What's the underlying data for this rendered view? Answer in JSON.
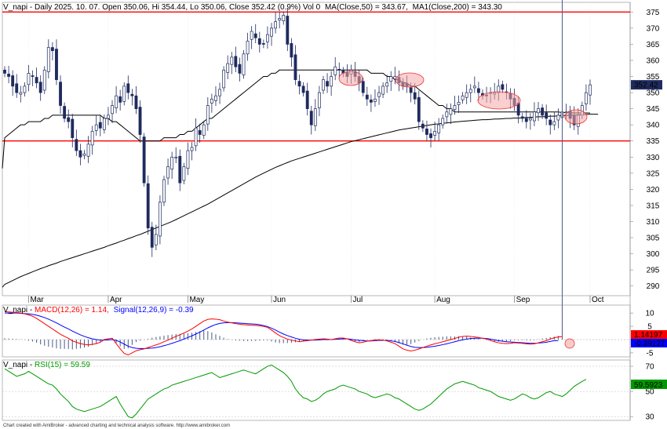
{
  "header": {
    "symbol": "V_napi",
    "price_title": "V_napi - Daily 2025. 10. 07. Open 350.06, Hi 354.44, Lo 350.06, Close 352.42 (0.9%) Vol 0",
    "ma50_label": "MA(Close,50) = 343.67,",
    "ma200_label": "MA1(Close,200) = 343.30",
    "macd_prefix": "V_napi - ",
    "macd_label": "MACD(12,26) = 1.14,",
    "signal_label": "Signal(12,26,9) = -0.39",
    "rsi_prefix": "V_napi - ",
    "rsi_label": "RSI(15) = 59.59",
    "footer": "Chart created with AmiBroker - advanced charting and technical analysis software. http://www.amibroker.com"
  },
  "colors": {
    "bull": "#ffffff",
    "bear": "#1f2b5e",
    "wick": "#1f2b5e",
    "ma50": "#000000",
    "ma200": "#000000",
    "hline": "#ff0000",
    "macd": "#ff0000",
    "signal": "#0000ff",
    "hist": "#4a5a88",
    "rsi": "#009900",
    "last_price_bg": "#1f2b5e",
    "macd_tag_bg": "#ff0000",
    "signal_tag_bg": "#0000ff",
    "rsi_tag_bg": "#009900"
  },
  "chart_data": [
    {
      "type": "candlestick",
      "title": "V_napi - Daily",
      "ylim": [
        287,
        378
      ],
      "yticks": [
        290,
        295,
        300,
        305,
        310,
        315,
        320,
        325,
        330,
        335,
        340,
        345,
        350,
        355,
        360,
        365,
        370,
        375
      ],
      "months": [
        {
          "label": "Mar",
          "index": 6
        },
        {
          "label": "Apr",
          "index": 26
        },
        {
          "label": "May",
          "index": 46
        },
        {
          "label": "Jun",
          "index": 67
        },
        {
          "label": "Jul",
          "index": 87
        },
        {
          "label": "Aug",
          "index": 108
        },
        {
          "label": "Sep",
          "index": 128
        },
        {
          "label": "Oct",
          "index": 147
        }
      ],
      "horizontal_lines": [
        375.0,
        335.0
      ],
      "last_price": "352.42",
      "closes": [
        356,
        355,
        352,
        350,
        350,
        352,
        356,
        355,
        353,
        350,
        357,
        364,
        363,
        354,
        346,
        342,
        341,
        336,
        332,
        330,
        331,
        334,
        338,
        340,
        339,
        342,
        343,
        346,
        349,
        347,
        352,
        350,
        349,
        345,
        337,
        322,
        308,
        302,
        306,
        316,
        323,
        327,
        330,
        330,
        322,
        327,
        332,
        333,
        339,
        337,
        340,
        346,
        348,
        349,
        351,
        357,
        359,
        361,
        358,
        356,
        362,
        366,
        369,
        367,
        365,
        365,
        368,
        370,
        372,
        373,
        374,
        365,
        361,
        354,
        352,
        350,
        345,
        340,
        345,
        350,
        354,
        352,
        355,
        358,
        357,
        356,
        355,
        357,
        355,
        353,
        350,
        348,
        347,
        348,
        350,
        352,
        353,
        355,
        355,
        353,
        352,
        352,
        350,
        348,
        341,
        339,
        337,
        336,
        338,
        340,
        342,
        344,
        345,
        346,
        347,
        349,
        350,
        351,
        352,
        350,
        349,
        349,
        350,
        350,
        352,
        351,
        350,
        348,
        346,
        343,
        342,
        341,
        342,
        344,
        345,
        343,
        342,
        340,
        341,
        343,
        344,
        344,
        342,
        340,
        343,
        346,
        350,
        352.42
      ],
      "series": [
        {
          "name": "MA(Close,50)",
          "values": [
            336,
            337,
            338,
            339,
            340,
            340,
            341,
            341,
            341,
            341,
            342,
            342,
            343,
            343,
            343,
            343,
            343,
            343,
            343,
            343,
            343,
            343,
            343,
            343,
            343,
            342,
            342,
            341,
            341,
            340,
            339,
            338,
            337,
            336,
            335,
            335,
            335,
            335,
            335,
            335,
            336,
            336,
            336,
            336,
            337,
            337,
            338,
            338,
            339,
            340,
            341,
            342,
            342,
            343,
            344,
            345,
            346,
            347,
            348,
            349,
            350,
            351,
            352,
            353,
            354,
            355,
            355,
            356,
            356,
            357,
            357,
            357,
            357,
            357,
            357,
            357,
            357,
            357,
            357,
            357,
            357,
            357,
            357,
            357,
            357,
            357,
            357,
            357,
            357,
            357,
            357,
            357,
            356,
            356,
            356,
            356,
            355,
            355,
            354,
            354,
            353,
            353,
            352,
            352,
            351,
            350,
            349,
            348,
            347,
            346,
            346,
            345,
            345,
            344,
            344,
            344,
            344,
            344,
            344,
            344,
            344,
            344,
            344,
            344,
            344,
            344,
            344,
            344,
            344,
            344,
            344,
            344,
            344,
            344,
            344,
            344,
            344,
            344,
            344,
            344,
            343.8,
            343.8,
            343.7,
            343.7,
            343.7,
            343.7,
            343.7,
            343.67
          ]
        },
        {
          "name": "MA1(Close,200)",
          "values": [
            290.5,
            291.1,
            291.7,
            292.3,
            292.9,
            293.4,
            293.9,
            294.4,
            294.9,
            295.4,
            295.8,
            296.3,
            296.7,
            297.1,
            297.6,
            298.0,
            298.4,
            298.8,
            299.2,
            299.6,
            300.0,
            300.4,
            300.8,
            301.2,
            301.6,
            302.0,
            302.5,
            302.9,
            303.3,
            303.8,
            304.2,
            304.7,
            305.1,
            305.6,
            306.0,
            306.5,
            307.0,
            307.5,
            308.0,
            308.5,
            309.0,
            309.5,
            310.0,
            310.6,
            311.2,
            311.8,
            312.4,
            313.0,
            313.6,
            314.2,
            314.8,
            315.4,
            316.1,
            316.8,
            317.5,
            318.2,
            318.9,
            319.6,
            320.3,
            321.0,
            321.7,
            322.4,
            323.1,
            323.8,
            324.4,
            325.0,
            325.6,
            326.2,
            326.8,
            327.3,
            327.8,
            328.3,
            328.8,
            329.2,
            329.6,
            330.0,
            330.4,
            330.8,
            331.2,
            331.6,
            332.0,
            332.4,
            332.8,
            333.2,
            333.6,
            334.0,
            334.4,
            334.8,
            335.1,
            335.4,
            335.7,
            336.0,
            336.3,
            336.6,
            336.9,
            337.2,
            337.5,
            337.8,
            338.1,
            338.4,
            338.6,
            338.8,
            339.0,
            339.2,
            339.4,
            339.6,
            339.8,
            340.0,
            340.2,
            340.3,
            340.5,
            340.6,
            340.7,
            340.9,
            341.0,
            341.1,
            341.2,
            341.3,
            341.4,
            341.5,
            341.6,
            341.6,
            341.7,
            341.8,
            341.8,
            341.9,
            342.0,
            342.0,
            342.1,
            342.1,
            342.2,
            342.3,
            342.3,
            342.4,
            342.5,
            342.5,
            342.6,
            342.7,
            342.7,
            342.8,
            342.9,
            342.9,
            343.0,
            343.0,
            343.1,
            343.2,
            343.2,
            343.3,
            343.3,
            343.3
          ]
        }
      ]
    },
    {
      "type": "line",
      "title": "V_napi - MACD(12,26)",
      "ylim": [
        -6.5,
        13
      ],
      "yticks": [
        -5,
        0,
        5,
        10
      ],
      "macd_tag": "1.14197",
      "signal_tag": "-0.39127",
      "series": [
        {
          "name": "MACD(12,26)",
          "values": [
            10.5,
            10.4,
            10.3,
            10.2,
            10.0,
            9.7,
            9.3,
            8.8,
            8.0,
            7.0,
            6.0,
            5.0,
            4.0,
            3.0,
            2.0,
            1.2,
            0.5,
            -0.5,
            -1.0,
            -1.5,
            -1.8,
            -2.0,
            -1.8,
            -1.5,
            -1.0,
            0.0,
            0.3,
            0.5,
            -1.5,
            -3.5,
            -5.2,
            -5.8,
            -5.0,
            -4.2,
            -3.8,
            -3.5,
            -3.0,
            -2.5,
            -2.0,
            -1.5,
            -0.8,
            -0.2,
            0.5,
            1.2,
            1.8,
            2.5,
            3.2,
            4.0,
            5.0,
            6.0,
            7.0,
            7.6,
            7.8,
            7.7,
            7.5,
            7.0,
            6.6,
            6.3,
            6.0,
            5.8,
            5.6,
            5.5,
            5.4,
            5.3,
            5.2,
            5.0,
            4.6,
            3.6,
            2.5,
            1.5,
            0.8,
            0.2,
            -0.2,
            -0.5,
            -0.8,
            -0.6,
            -0.4,
            -0.2,
            0.0,
            0.2,
            0.3,
            0.2,
            0.0,
            0.3,
            0.6,
            0.6,
            0.3,
            -0.3,
            -0.8,
            -1.2,
            -1.0,
            -0.6,
            -0.4,
            -0.2,
            -0.1,
            -0.2,
            -0.5,
            -1.0,
            -1.5,
            -2.5,
            -3.5,
            -4.0,
            -4.3,
            -4.0,
            -3.5,
            -3.0,
            -2.5,
            -2.0,
            -1.6,
            -1.2,
            -0.8,
            -0.4,
            0.0,
            0.4,
            0.9,
            1.2,
            1.3,
            1.2,
            1.0,
            0.8,
            0.5,
            0.2,
            -0.3,
            -0.8,
            -1.2,
            -1.4,
            -1.5,
            -1.4,
            -1.2,
            -1.3,
            -1.4,
            -1.6,
            -1.7,
            -1.6,
            -1.2,
            -0.8,
            -0.4,
            0.2,
            0.7,
            1.0,
            1.14
          ]
        },
        {
          "name": "Signal(12,26,9)",
          "values": [
            10.0,
            10.0,
            10.0,
            10.0,
            9.9,
            9.8,
            9.7,
            9.5,
            9.2,
            8.8,
            8.3,
            7.7,
            7.0,
            6.3,
            5.5,
            4.7,
            4.0,
            3.2,
            2.5,
            1.8,
            1.2,
            0.7,
            0.3,
            0.0,
            -0.2,
            -0.2,
            -0.1,
            0.0,
            -0.3,
            -0.9,
            -1.7,
            -2.5,
            -3.0,
            -3.3,
            -3.4,
            -3.4,
            -3.3,
            -3.2,
            -3.0,
            -2.7,
            -2.3,
            -1.9,
            -1.4,
            -0.9,
            -0.4,
            0.2,
            0.8,
            1.4,
            2.1,
            2.8,
            3.6,
            4.4,
            5.1,
            5.7,
            6.1,
            6.3,
            6.4,
            6.4,
            6.3,
            6.2,
            6.1,
            6.0,
            5.9,
            5.8,
            5.6,
            5.3,
            4.9,
            4.3,
            3.6,
            2.8,
            2.1,
            1.5,
            1.0,
            0.5,
            0.1,
            -0.1,
            -0.2,
            -0.2,
            -0.2,
            -0.1,
            0.0,
            0.0,
            0.0,
            0.1,
            0.2,
            0.3,
            0.3,
            0.1,
            -0.1,
            -0.3,
            -0.4,
            -0.5,
            -0.5,
            -0.4,
            -0.3,
            -0.3,
            -0.3,
            -0.5,
            -0.7,
            -1.1,
            -1.6,
            -2.1,
            -2.6,
            -2.9,
            -3.0,
            -3.0,
            -2.9,
            -2.7,
            -2.5,
            -2.2,
            -1.9,
            -1.6,
            -1.2,
            -0.8,
            -0.4,
            -0.1,
            0.2,
            0.4,
            0.5,
            0.5,
            0.5,
            0.4,
            0.2,
            -0.1,
            -0.4,
            -0.6,
            -0.8,
            -0.9,
            -1.0,
            -1.1,
            -1.2,
            -1.3,
            -1.4,
            -1.4,
            -1.3,
            -1.2,
            -1.0,
            -0.7,
            -0.4,
            -0.39
          ]
        }
      ]
    },
    {
      "type": "line",
      "title": "V_napi - RSI(15)",
      "ylim": [
        27,
        75
      ],
      "yticks": [
        30,
        50,
        70
      ],
      "rsi_tag": "59.5923",
      "series": [
        {
          "name": "RSI(15)",
          "values": [
            68,
            66,
            64,
            62,
            63,
            64,
            66,
            64,
            62,
            60,
            58,
            56,
            55,
            52,
            48,
            45,
            42,
            38,
            36,
            35,
            34,
            35,
            36,
            37,
            38,
            40,
            42,
            44,
            46,
            40,
            35,
            30,
            29,
            32,
            36,
            40,
            44,
            46,
            48,
            50,
            52,
            53,
            55,
            56,
            57,
            58,
            59,
            60,
            61,
            62,
            63,
            64,
            65,
            63,
            61,
            62,
            63,
            64,
            65,
            66,
            67,
            66,
            65,
            64,
            66,
            68,
            70,
            71,
            69,
            67,
            65,
            62,
            58,
            52,
            48,
            45,
            44,
            42,
            43,
            45,
            48,
            50,
            51,
            52,
            54,
            55,
            54,
            53,
            52,
            50,
            49,
            48,
            46,
            45,
            46,
            47,
            48,
            47,
            45,
            44,
            42,
            40,
            38,
            36,
            35,
            36,
            38,
            40,
            43,
            46,
            49,
            52,
            54,
            56,
            57,
            58,
            57,
            56,
            55,
            53,
            52,
            51,
            50,
            48,
            46,
            45,
            44,
            43,
            44,
            46,
            48,
            47,
            45,
            44,
            45,
            47,
            49,
            50,
            48,
            47,
            46,
            48,
            51,
            54,
            56,
            58,
            59.59
          ]
        }
      ]
    }
  ]
}
